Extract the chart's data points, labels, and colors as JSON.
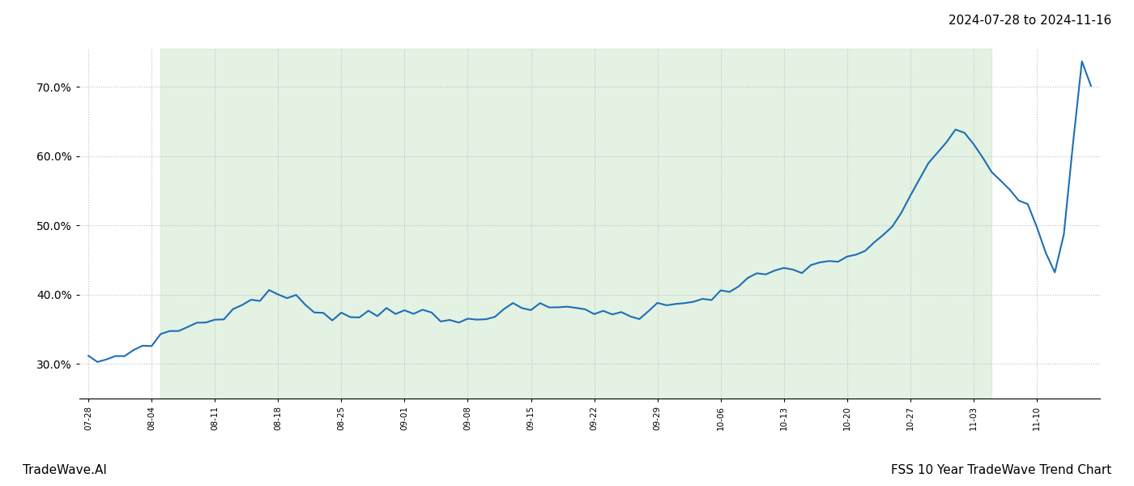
{
  "date_range_text": "2024-07-28 to 2024-11-16",
  "bottom_left_text": "TradeWave.AI",
  "bottom_right_text": "FSS 10 Year TradeWave Trend Chart",
  "y_ticks": [
    0.3,
    0.4,
    0.5,
    0.6,
    0.7
  ],
  "y_tick_labels": [
    "30.0%",
    "40.0%",
    "50.0%",
    "60.0%",
    "70.0%"
  ],
  "ylim": [
    0.25,
    0.755
  ],
  "line_color": "#1f6eb5",
  "line_width": 1.5,
  "shade_color": "#c8e6c9",
  "shade_alpha": 0.5,
  "background_color": "#ffffff",
  "grid_color": "#c0c0c0",
  "grid_style": "dotted",
  "date_range_fontsize": 11,
  "footer_fontsize": 11
}
